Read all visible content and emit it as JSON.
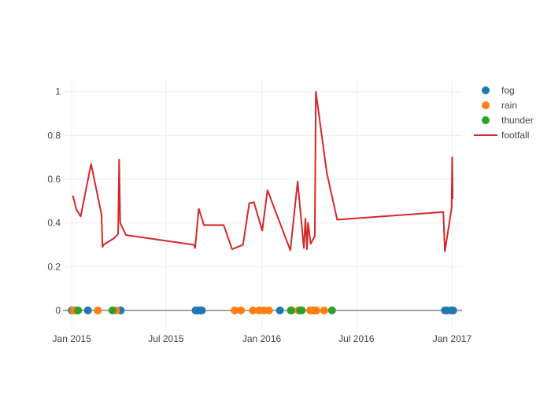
{
  "chart_data": {
    "type": "scatter",
    "title": "",
    "xlabel": "",
    "ylabel": "",
    "xlim": [
      "2014-12-15",
      "2017-01-20"
    ],
    "ylim": [
      -0.09,
      1.06
    ],
    "x_ticks": [
      {
        "label": "Jan 2015",
        "date": "2015-01-01"
      },
      {
        "label": "Jul 2015",
        "date": "2015-07-01"
      },
      {
        "label": "Jan 2016",
        "date": "2016-01-01"
      },
      {
        "label": "Jul 2016",
        "date": "2016-07-01"
      },
      {
        "label": "Jan 2017",
        "date": "2017-01-01"
      }
    ],
    "y_ticks": [
      0,
      0.2,
      0.4,
      0.6,
      0.8,
      1
    ],
    "grid": true,
    "legend_position": "top-right",
    "series": [
      {
        "name": "fog",
        "mode": "markers",
        "color": "#1f77b4",
        "points": [
          {
            "x": "2015-01-01",
            "y": 0
          },
          {
            "x": "2015-01-07",
            "y": 0
          },
          {
            "x": "2015-02-01",
            "y": 0
          },
          {
            "x": "2015-04-05",
            "y": 0
          },
          {
            "x": "2015-08-27",
            "y": 0
          },
          {
            "x": "2015-09-01",
            "y": 0
          },
          {
            "x": "2015-09-05",
            "y": 0
          },
          {
            "x": "2015-09-08",
            "y": 0
          },
          {
            "x": "2016-02-05",
            "y": 0
          },
          {
            "x": "2016-04-12",
            "y": 0
          },
          {
            "x": "2016-12-18",
            "y": 0
          },
          {
            "x": "2016-12-22",
            "y": 0
          },
          {
            "x": "2016-12-30",
            "y": 0
          },
          {
            "x": "2017-01-03",
            "y": 0
          }
        ]
      },
      {
        "name": "rain",
        "mode": "markers",
        "color": "#ff7f0e",
        "points": [
          {
            "x": "2015-01-04",
            "y": 0
          },
          {
            "x": "2015-01-09",
            "y": 0
          },
          {
            "x": "2015-02-20",
            "y": 0
          },
          {
            "x": "2015-03-27",
            "y": 0
          },
          {
            "x": "2015-11-10",
            "y": 0
          },
          {
            "x": "2015-11-22",
            "y": 0
          },
          {
            "x": "2015-12-15",
            "y": 0
          },
          {
            "x": "2015-12-27",
            "y": 0
          },
          {
            "x": "2016-01-05",
            "y": 0
          },
          {
            "x": "2016-01-15",
            "y": 0
          },
          {
            "x": "2016-02-28",
            "y": 0
          },
          {
            "x": "2016-03-12",
            "y": 0
          },
          {
            "x": "2016-04-03",
            "y": 0
          },
          {
            "x": "2016-04-09",
            "y": 0
          },
          {
            "x": "2016-04-15",
            "y": 0
          },
          {
            "x": "2016-04-30",
            "y": 0
          }
        ]
      },
      {
        "name": "thunder",
        "mode": "markers",
        "color": "#2ca02c",
        "points": [
          {
            "x": "2015-01-13",
            "y": 0
          },
          {
            "x": "2015-03-20",
            "y": 0
          },
          {
            "x": "2016-02-26",
            "y": 0
          },
          {
            "x": "2016-03-15",
            "y": 0
          },
          {
            "x": "2016-03-18",
            "y": 0
          },
          {
            "x": "2016-05-15",
            "y": 0
          }
        ]
      },
      {
        "name": "footfall",
        "mode": "lines",
        "color": "#d62728",
        "points": [
          {
            "x": "2015-01-03",
            "y": 0.525
          },
          {
            "x": "2015-01-10",
            "y": 0.46
          },
          {
            "x": "2015-01-18",
            "y": 0.43
          },
          {
            "x": "2015-02-07",
            "y": 0.67
          },
          {
            "x": "2015-02-27",
            "y": 0.44
          },
          {
            "x": "2015-03-01",
            "y": 0.29
          },
          {
            "x": "2015-03-03",
            "y": 0.3
          },
          {
            "x": "2015-03-23",
            "y": 0.33
          },
          {
            "x": "2015-03-31",
            "y": 0.35
          },
          {
            "x": "2015-04-02",
            "y": 0.69
          },
          {
            "x": "2015-04-04",
            "y": 0.4
          },
          {
            "x": "2015-04-15",
            "y": 0.345
          },
          {
            "x": "2015-08-24",
            "y": 0.3
          },
          {
            "x": "2015-08-26",
            "y": 0.285
          },
          {
            "x": "2015-09-02",
            "y": 0.465
          },
          {
            "x": "2015-09-12",
            "y": 0.39
          },
          {
            "x": "2015-10-20",
            "y": 0.39
          },
          {
            "x": "2015-11-05",
            "y": 0.28
          },
          {
            "x": "2015-11-26",
            "y": 0.3
          },
          {
            "x": "2015-12-08",
            "y": 0.49
          },
          {
            "x": "2015-12-17",
            "y": 0.495
          },
          {
            "x": "2016-01-02",
            "y": 0.365
          },
          {
            "x": "2016-01-12",
            "y": 0.55
          },
          {
            "x": "2016-02-25",
            "y": 0.275
          },
          {
            "x": "2016-03-10",
            "y": 0.59
          },
          {
            "x": "2016-03-22",
            "y": 0.285
          },
          {
            "x": "2016-03-25",
            "y": 0.42
          },
          {
            "x": "2016-03-28",
            "y": 0.28
          },
          {
            "x": "2016-03-30",
            "y": 0.4
          },
          {
            "x": "2016-04-04",
            "y": 0.305
          },
          {
            "x": "2016-04-12",
            "y": 0.34
          },
          {
            "x": "2016-04-14",
            "y": 1.0
          },
          {
            "x": "2016-05-05",
            "y": 0.63
          },
          {
            "x": "2016-05-25",
            "y": 0.415
          },
          {
            "x": "2016-12-15",
            "y": 0.45
          },
          {
            "x": "2016-12-18",
            "y": 0.27
          },
          {
            "x": "2016-12-22",
            "y": 0.33
          },
          {
            "x": "2016-12-31",
            "y": 0.47
          },
          {
            "x": "2017-01-01",
            "y": 0.7
          },
          {
            "x": "2017-01-02",
            "y": 0.51
          }
        ]
      }
    ]
  }
}
